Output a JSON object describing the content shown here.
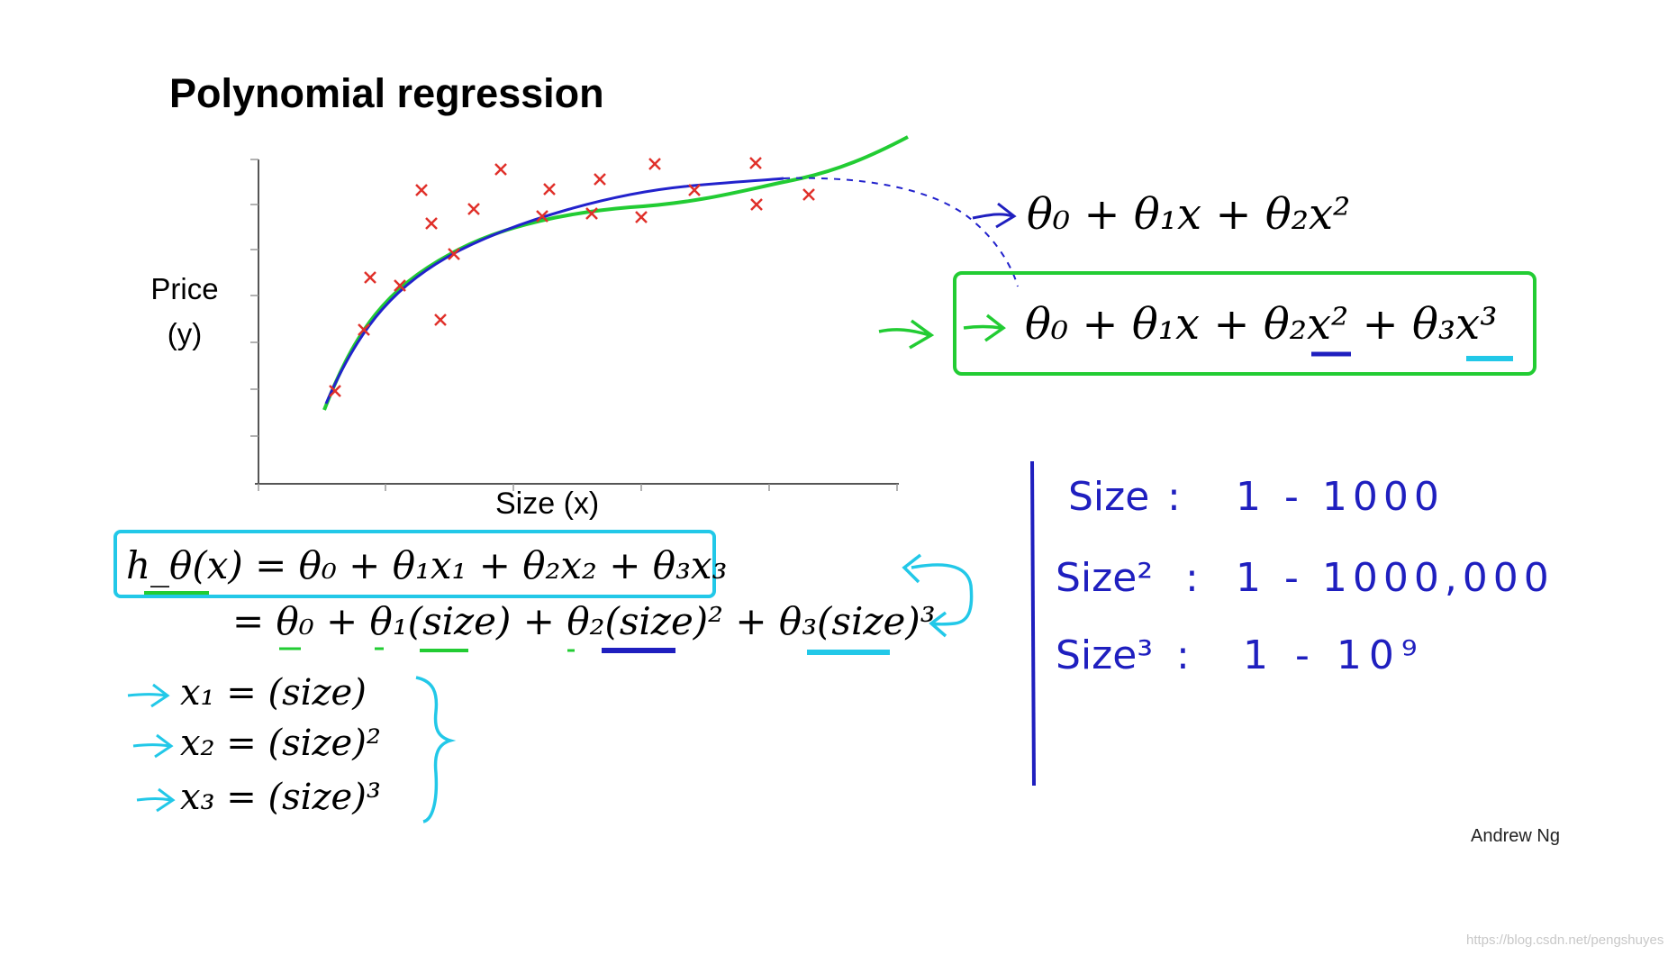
{
  "slide": {
    "title": "Polynomial regression",
    "ylabel_line1": "Price",
    "ylabel_line2": "(y)",
    "xlabel": "Size (x)",
    "author": "Andrew Ng",
    "watermark": "https://blog.csdn.net/pengshuyes"
  },
  "models": {
    "quadratic": "θ₀ + θ₁x + θ₂x²",
    "cubic": "θ₀ + θ₁x + θ₂x² + θ₃x³"
  },
  "hypothesis": {
    "line1": "h_θ(x) = θ₀ + θ₁x₁ + θ₂x₂ + θ₃x₃",
    "line2": "= θ₀ + θ₁(size) + θ₂(size)² + θ₃(size)³"
  },
  "features": [
    "x₁ = (size)",
    "x₂ = (size)²",
    "x₃ = (size)³"
  ],
  "scale_notes": [
    {
      "label": "Size",
      "range": "1 - 1000"
    },
    {
      "label": "Size²",
      "range": "1 - 1000,000"
    },
    {
      "label": "Size³",
      "range": "1 - 10⁹"
    }
  ],
  "colors": {
    "points": "#e0302a",
    "quadratic_curve": "#2222cc",
    "cubic_curve": "#22cc33",
    "highlight_cyan": "#22c8e8",
    "ink_blue": "#1f1fbf"
  }
}
